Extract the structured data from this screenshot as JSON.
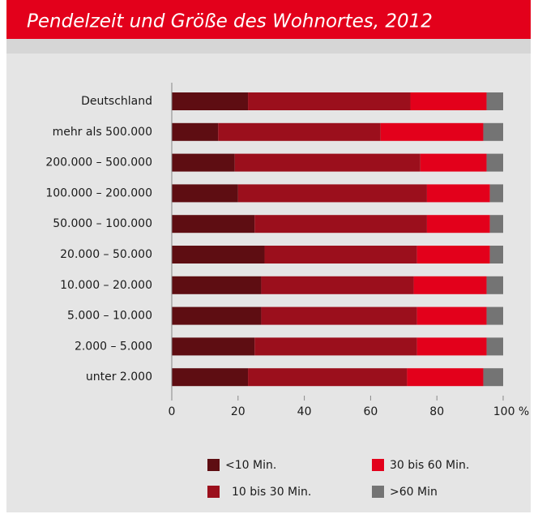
{
  "chart_data": {
    "type": "stacked_barh",
    "title": "Pendelzeit und Größe des Wohnortes, 2012",
    "categories": [
      "Deutschland",
      "mehr als 500.000",
      "200.000 – 500.000",
      "100.000 – 200.000",
      "50.000 – 100.000",
      "20.000 – 50.000",
      "10.000 – 20.000",
      "5.000 – 10.000",
      "2.000 – 5.000",
      "unter 2.000"
    ],
    "series": [
      {
        "name": "<10 Min.",
        "color": "#5e0d12",
        "values": [
          23,
          14,
          19,
          20,
          25,
          28,
          27,
          27,
          25,
          23
        ]
      },
      {
        "name": "10 bis 30 Min.",
        "color": "#9b0f1c",
        "values": [
          49,
          49,
          56,
          57,
          52,
          46,
          46,
          47,
          49,
          48
        ]
      },
      {
        "name": "30 bis 60 Min.",
        "color": "#e3001b",
        "values": [
          23,
          31,
          20,
          19,
          19,
          22,
          22,
          21,
          21,
          23
        ]
      },
      {
        "name": ">60 Min",
        "color": "#747474",
        "values": [
          5,
          6,
          5,
          4,
          4,
          4,
          5,
          5,
          5,
          6
        ]
      }
    ],
    "xlim": [
      0,
      100
    ],
    "xticks": [
      0,
      20,
      40,
      60,
      80,
      {
        "value": 100,
        "label": "100 %"
      }
    ]
  }
}
